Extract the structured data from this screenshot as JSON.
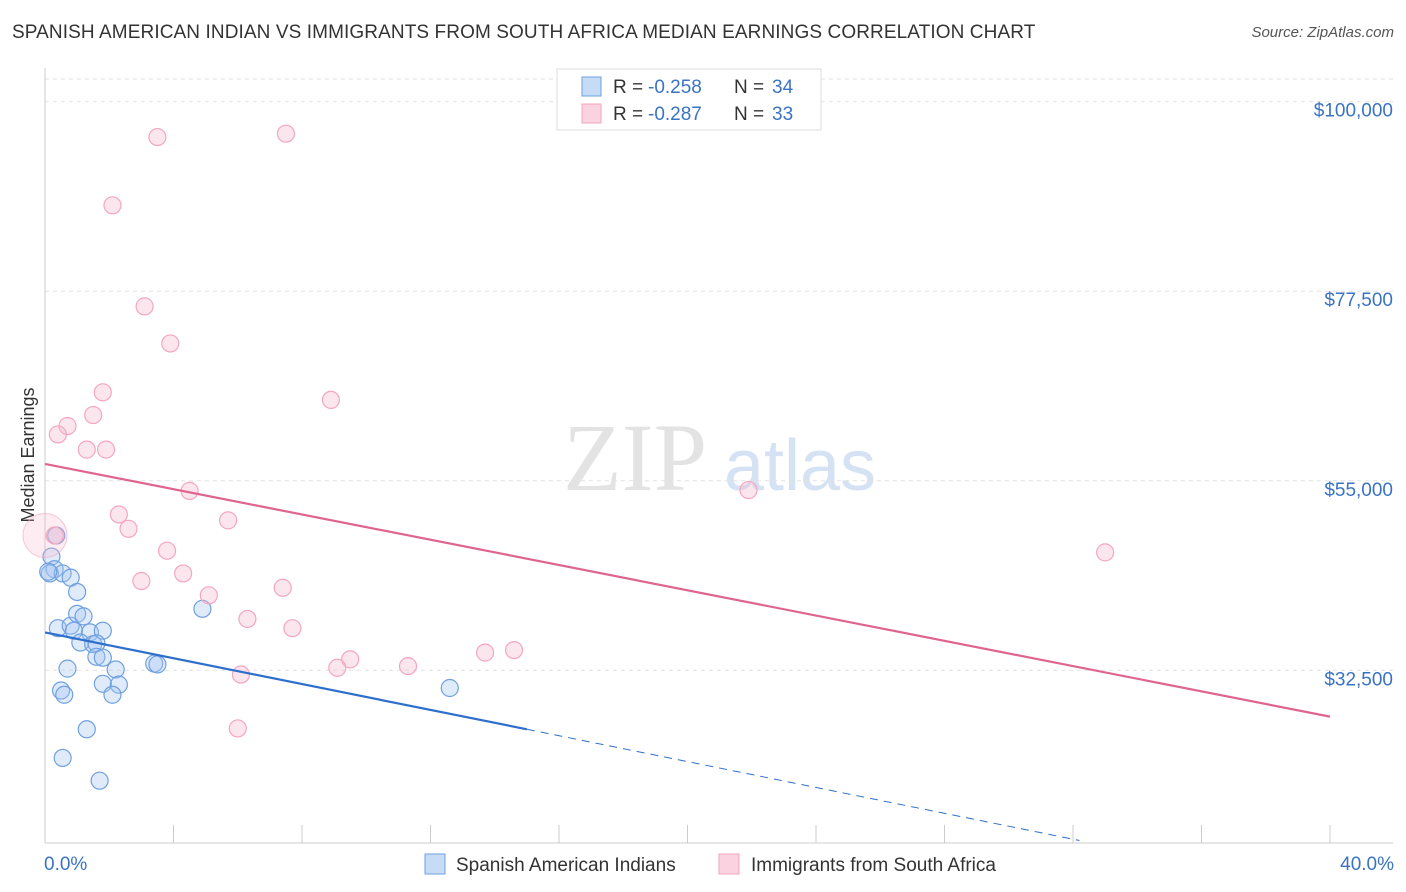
{
  "title": "SPANISH AMERICAN INDIAN VS IMMIGRANTS FROM SOUTH AFRICA MEDIAN EARNINGS CORRELATION CHART",
  "source": "Source: ZipAtlas.com",
  "watermark": {
    "zip": "ZIP",
    "atlas": "atlas"
  },
  "chart_data": {
    "type": "scatter",
    "title": "SPANISH AMERICAN INDIAN VS IMMIGRANTS FROM SOUTH AFRICA MEDIAN EARNINGS CORRELATION CHART",
    "xlabel": "",
    "ylabel": "Median Earnings",
    "xlim": [
      0,
      40
    ],
    "ylim": [
      12000,
      104000
    ],
    "x_tick_labels": [
      "0.0%",
      "40.0%"
    ],
    "y_ticks": [
      32500,
      55000,
      77500,
      100000
    ],
    "y_tick_labels": [
      "$32,500",
      "$55,000",
      "$77,500",
      "$100,000"
    ],
    "grid": true,
    "legend_position": "top-center",
    "series": [
      {
        "name": "Spanish American Indians",
        "color": "#6fa0e0",
        "line_color": "#2e6fcc",
        "r_label": "R =",
        "r_value": "-0.258",
        "n_label": "N =",
        "n_value": "34",
        "trend": {
          "x": [
            0,
            15,
            32.2
          ],
          "y": [
            37000,
            25500,
            12300
          ],
          "solid_until": 15
        },
        "points": [
          [
            0.2,
            46000
          ],
          [
            0.35,
            48500
          ],
          [
            0.3,
            44500
          ],
          [
            0.15,
            44000
          ],
          [
            0.55,
            44000
          ],
          [
            0.8,
            43500
          ],
          [
            1.0,
            41800
          ],
          [
            0.4,
            37500
          ],
          [
            0.8,
            37800
          ],
          [
            0.9,
            37200
          ],
          [
            1.0,
            39200
          ],
          [
            1.2,
            38900
          ],
          [
            1.4,
            37000
          ],
          [
            1.8,
            37200
          ],
          [
            1.1,
            35800
          ],
          [
            1.5,
            35600
          ],
          [
            1.6,
            35700
          ],
          [
            1.6,
            34100
          ],
          [
            1.8,
            34000
          ],
          [
            0.7,
            32700
          ],
          [
            2.2,
            32600
          ],
          [
            1.8,
            30900
          ],
          [
            2.3,
            30800
          ],
          [
            0.5,
            30100
          ],
          [
            0.6,
            29600
          ],
          [
            2.1,
            29600
          ],
          [
            3.4,
            33300
          ],
          [
            3.5,
            33200
          ],
          [
            4.9,
            39800
          ],
          [
            12.6,
            30400
          ],
          [
            1.3,
            25500
          ],
          [
            0.55,
            22100
          ],
          [
            1.7,
            19400
          ],
          [
            0.1,
            44200
          ]
        ]
      },
      {
        "name": "Immigrants from South Africa",
        "color": "#f4a6bf",
        "line_color": "#e0658e",
        "r_label": "R =",
        "r_value": "-0.287",
        "n_label": "N =",
        "n_value": "33",
        "trend": {
          "x": [
            0,
            40
          ],
          "y": [
            57000,
            27000
          ]
        },
        "points": [
          [
            3.5,
            95800
          ],
          [
            7.5,
            96200
          ],
          [
            2.1,
            87700
          ],
          [
            3.1,
            75700
          ],
          [
            3.9,
            71300
          ],
          [
            1.8,
            65500
          ],
          [
            1.5,
            62800
          ],
          [
            0.7,
            61500
          ],
          [
            0.4,
            60500
          ],
          [
            1.9,
            58700
          ],
          [
            1.3,
            58700
          ],
          [
            8.9,
            64600
          ],
          [
            4.5,
            53800
          ],
          [
            2.3,
            51000
          ],
          [
            2.6,
            49300
          ],
          [
            5.7,
            50300
          ],
          [
            3.8,
            46700
          ],
          [
            0.3,
            48500
          ],
          [
            4.3,
            44000
          ],
          [
            3.0,
            43100
          ],
          [
            5.1,
            41400
          ],
          [
            7.4,
            42300
          ],
          [
            6.3,
            38600
          ],
          [
            7.7,
            37500
          ],
          [
            9.5,
            33800
          ],
          [
            9.1,
            32800
          ],
          [
            11.3,
            33000
          ],
          [
            13.7,
            34600
          ],
          [
            14.6,
            34900
          ],
          [
            6.1,
            32000
          ],
          [
            6.0,
            25600
          ],
          [
            21.9,
            53900
          ],
          [
            33.0,
            46500
          ]
        ]
      }
    ]
  }
}
